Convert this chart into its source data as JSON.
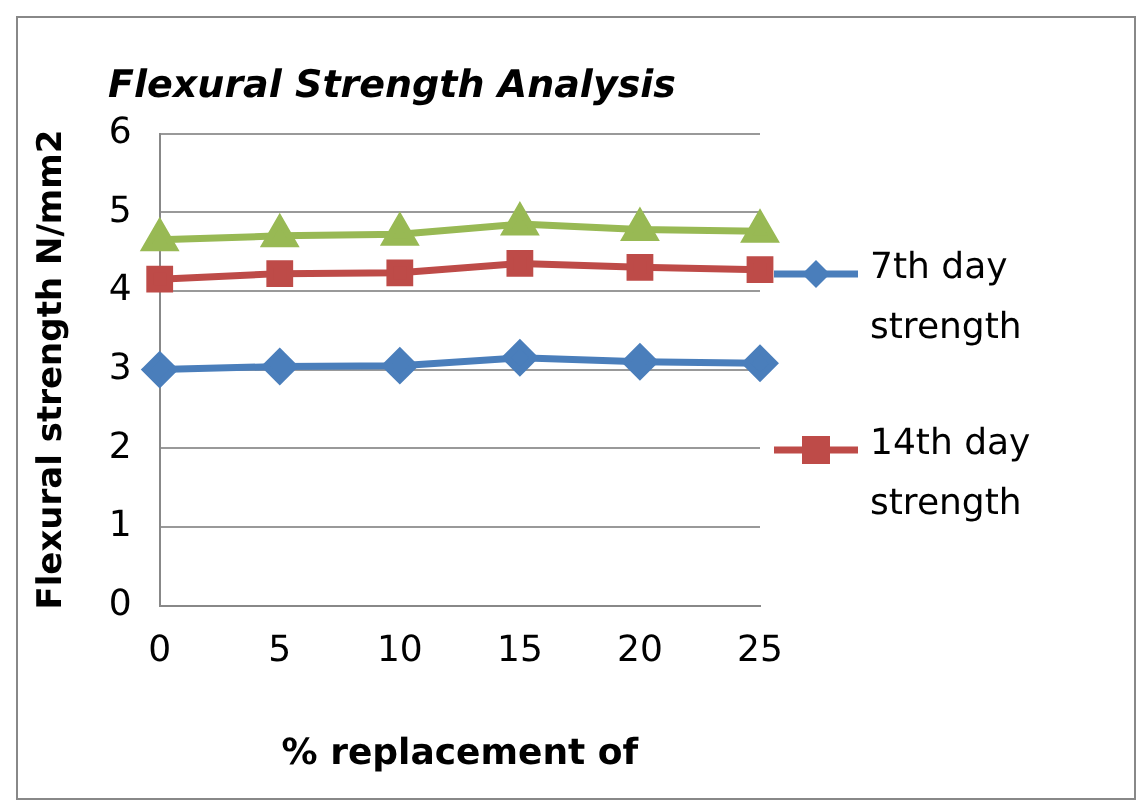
{
  "chart_data": {
    "type": "line",
    "title": "Flexural Strength Analysis",
    "xlabel": "% replacement of",
    "ylabel": "Flexural strength N/mm2",
    "categories": [
      "0",
      "5",
      "10",
      "15",
      "20",
      "25"
    ],
    "series": [
      {
        "name": "7th day strength",
        "color": "#4a7ebb",
        "marker": "diamond",
        "values": [
          3.0,
          3.04,
          3.05,
          3.15,
          3.1,
          3.08
        ]
      },
      {
        "name": "14th day strength",
        "color": "#be4b48",
        "marker": "square",
        "values": [
          4.15,
          4.22,
          4.23,
          4.35,
          4.3,
          4.27
        ]
      },
      {
        "color": "#98b954",
        "marker": "triangle",
        "values": [
          4.65,
          4.7,
          4.72,
          4.85,
          4.78,
          4.76
        ]
      }
    ],
    "ylim": [
      0,
      6
    ],
    "yticks": [
      0,
      1,
      2,
      3,
      4,
      5,
      6
    ],
    "grid": "y",
    "legend": "right"
  }
}
